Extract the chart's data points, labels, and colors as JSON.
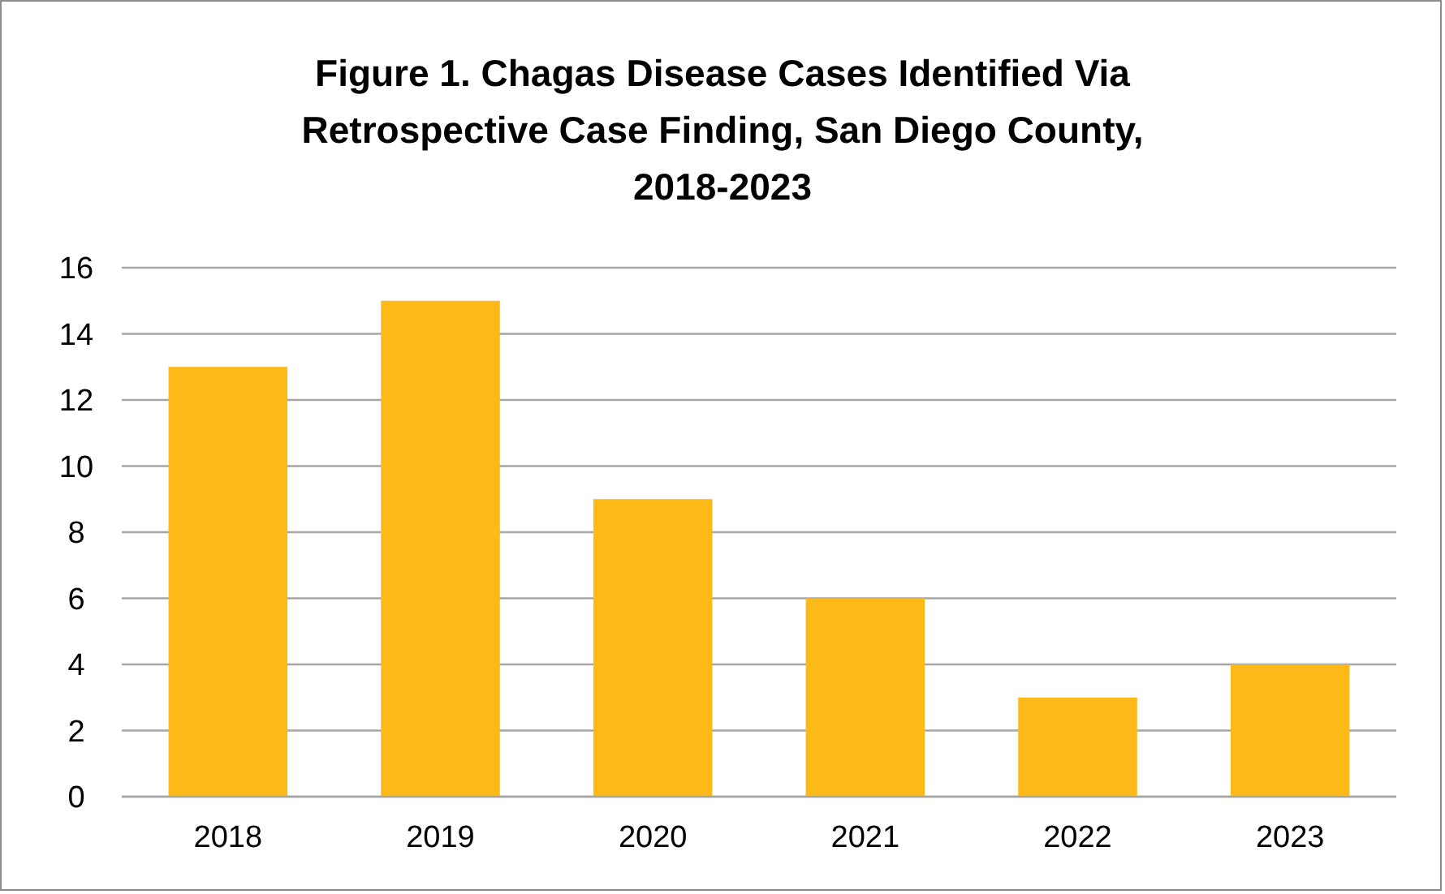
{
  "chart_data": {
    "type": "bar",
    "title": "Figure 1. Chagas Disease Cases Identified Via Retrospective Case Finding, San Diego County, 2018-2023",
    "categories": [
      "2018",
      "2019",
      "2020",
      "2021",
      "2022",
      "2023"
    ],
    "values": [
      13,
      15,
      9,
      6,
      3,
      4
    ],
    "color": "#fcb918",
    "ylim": [
      0,
      16
    ],
    "yticks": [
      0,
      2,
      4,
      6,
      8,
      10,
      12,
      14,
      16
    ],
    "grid": "y"
  }
}
